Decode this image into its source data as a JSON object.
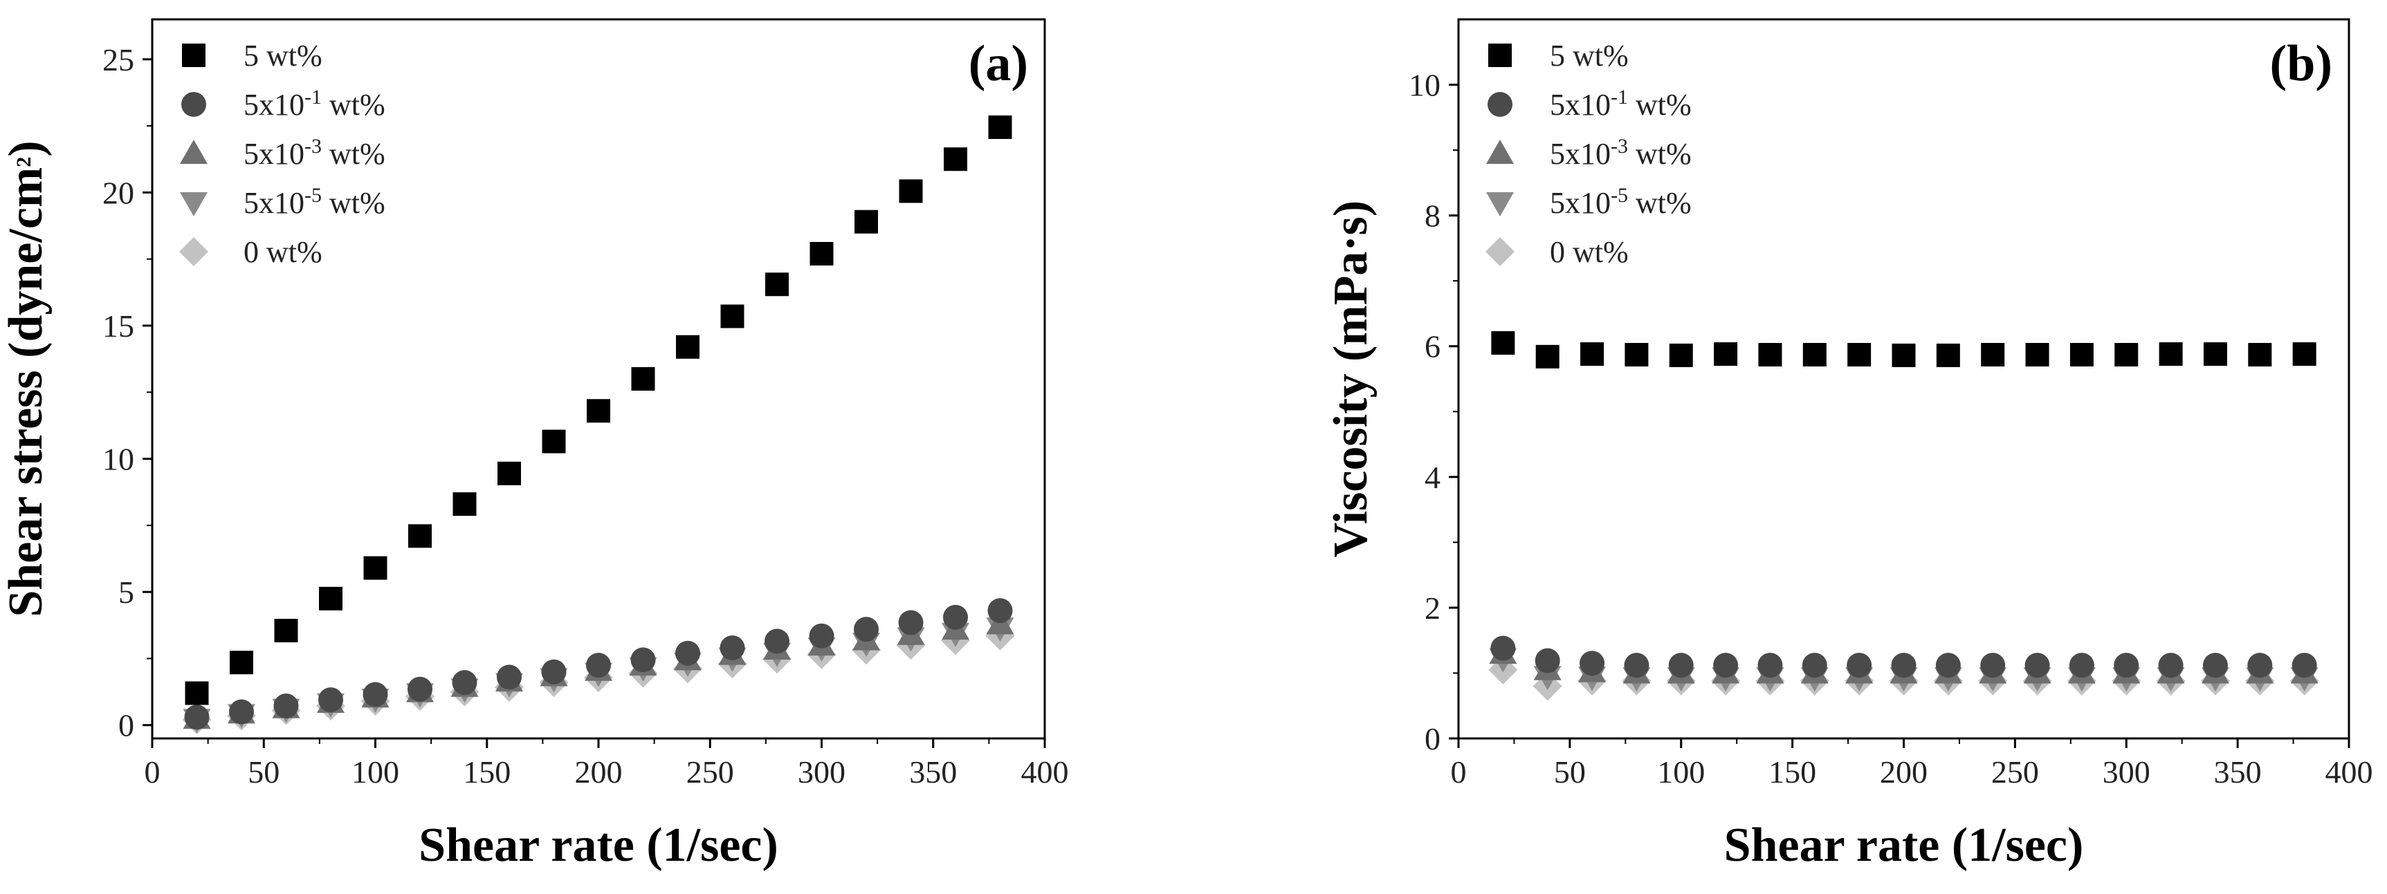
{
  "colors": {
    "s5": "#000000",
    "s5e1": "#4a4a4a",
    "s5e3": "#6f6f6f",
    "s5e5": "#8a8a8a",
    "s0": "#c2c2c2",
    "axis": "#000000"
  },
  "chart_data": [
    {
      "type": "scatter",
      "panel": "(a)",
      "xlabel": "Shear rate (1/sec)",
      "ylabel_main": "Shear stress (dyne/cm",
      "ylabel_sup": "2",
      "ylabel_end": ")",
      "xlim": [
        0,
        400
      ],
      "ylim": [
        -0.5,
        26.5
      ],
      "xticks": [
        0,
        50,
        100,
        150,
        200,
        250,
        300,
        350,
        400
      ],
      "xtick_labels": [
        "0",
        "50",
        "100",
        "150",
        "200",
        "250",
        "300",
        "350",
        "400"
      ],
      "yticks": [
        0,
        5,
        10,
        15,
        20,
        25
      ],
      "ytick_labels": [
        "0",
        "5",
        "10",
        "15",
        "20",
        "25"
      ],
      "legend_position": "top-left",
      "x": [
        20,
        40,
        60,
        80,
        100,
        120,
        140,
        160,
        180,
        200,
        220,
        240,
        260,
        280,
        300,
        320,
        340,
        360,
        380
      ],
      "series": [
        {
          "key": "s5",
          "marker": "square",
          "name_pre": "5 wt%",
          "name_sup": "",
          "name_post": "",
          "values": [
            1.2,
            2.35,
            3.55,
            4.75,
            5.9,
            7.1,
            8.3,
            9.45,
            10.65,
            11.8,
            13.0,
            14.2,
            15.35,
            16.55,
            17.7,
            18.9,
            20.05,
            21.25,
            22.45
          ]
        },
        {
          "key": "s5e1",
          "marker": "circle",
          "name_pre": "5x10",
          "name_sup": "-1",
          "name_post": " wt%",
          "values": [
            0.3,
            0.5,
            0.72,
            0.95,
            1.15,
            1.35,
            1.6,
            1.8,
            2.0,
            2.25,
            2.45,
            2.7,
            2.9,
            3.15,
            3.35,
            3.6,
            3.85,
            4.05,
            4.3
          ]
        },
        {
          "key": "s5e3",
          "marker": "triangle-up",
          "name_pre": "5x10",
          "name_sup": "-3",
          "name_post": " wt%",
          "values": [
            0.25,
            0.45,
            0.65,
            0.85,
            1.05,
            1.25,
            1.45,
            1.65,
            1.85,
            2.05,
            2.25,
            2.45,
            2.65,
            2.85,
            3.0,
            3.2,
            3.4,
            3.6,
            3.8
          ]
        },
        {
          "key": "s5e5",
          "marker": "triangle-down",
          "name_pre": "5x10",
          "name_sup": "-5",
          "name_post": " wt%",
          "values": [
            0.22,
            0.4,
            0.6,
            0.8,
            0.98,
            1.18,
            1.36,
            1.56,
            1.75,
            1.95,
            2.15,
            2.33,
            2.52,
            2.7,
            2.9,
            3.08,
            3.28,
            3.45,
            3.65
          ]
        },
        {
          "key": "s0",
          "marker": "diamond",
          "name_pre": "0 wt%",
          "name_sup": "",
          "name_post": "",
          "values": [
            0.2,
            0.35,
            0.55,
            0.72,
            0.9,
            1.08,
            1.25,
            1.42,
            1.6,
            1.78,
            1.95,
            2.12,
            2.3,
            2.48,
            2.65,
            2.82,
            3.0,
            3.18,
            3.35
          ]
        }
      ]
    },
    {
      "type": "scatter",
      "panel": "(b)",
      "xlabel": "Shear rate (1/sec)",
      "ylabel_main": "Viscosity (mPa·s)",
      "ylabel_sup": "",
      "ylabel_end": "",
      "xlim": [
        0,
        400
      ],
      "ylim": [
        0,
        11
      ],
      "xticks": [
        0,
        50,
        100,
        150,
        200,
        250,
        300,
        350,
        400
      ],
      "xtick_labels": [
        "0",
        "50",
        "100",
        "150",
        "200",
        "250",
        "300",
        "350",
        "400"
      ],
      "yticks": [
        0,
        2,
        4,
        6,
        8,
        10
      ],
      "ytick_labels": [
        "0",
        "2",
        "4",
        "6",
        "8",
        "10"
      ],
      "legend_position": "top-left",
      "x": [
        20,
        40,
        60,
        80,
        100,
        120,
        140,
        160,
        180,
        200,
        220,
        240,
        260,
        280,
        300,
        320,
        340,
        360,
        380
      ],
      "series": [
        {
          "key": "s5",
          "marker": "square",
          "name_pre": "5 wt%",
          "name_sup": "",
          "name_post": "",
          "values": [
            6.05,
            5.84,
            5.88,
            5.87,
            5.86,
            5.88,
            5.87,
            5.87,
            5.87,
            5.86,
            5.86,
            5.87,
            5.87,
            5.87,
            5.87,
            5.88,
            5.88,
            5.87,
            5.88
          ]
        },
        {
          "key": "s5e1",
          "marker": "circle",
          "name_pre": "5x10",
          "name_sup": "-1",
          "name_post": " wt%",
          "values": [
            1.38,
            1.19,
            1.15,
            1.12,
            1.12,
            1.12,
            1.12,
            1.12,
            1.12,
            1.12,
            1.12,
            1.12,
            1.12,
            1.12,
            1.12,
            1.12,
            1.12,
            1.12,
            1.12
          ]
        },
        {
          "key": "s5e3",
          "marker": "triangle-up",
          "name_pre": "5x10",
          "name_sup": "-3",
          "name_post": " wt%",
          "values": [
            1.3,
            1.05,
            1.02,
            1.0,
            1.0,
            1.0,
            1.0,
            1.0,
            1.0,
            1.0,
            1.0,
            1.0,
            1.0,
            1.0,
            1.0,
            1.0,
            1.0,
            1.0,
            1.0
          ]
        },
        {
          "key": "s5e5",
          "marker": "triangle-down",
          "name_pre": "5x10",
          "name_sup": "-5",
          "name_post": " wt%",
          "values": [
            1.22,
            0.95,
            0.94,
            0.93,
            0.93,
            0.93,
            0.93,
            0.93,
            0.93,
            0.93,
            0.93,
            0.93,
            0.93,
            0.93,
            0.93,
            0.93,
            0.93,
            0.93,
            0.93
          ]
        },
        {
          "key": "s0",
          "marker": "diamond",
          "name_pre": "0 wt%",
          "name_sup": "",
          "name_post": "",
          "values": [
            1.05,
            0.8,
            0.88,
            0.88,
            0.88,
            0.88,
            0.88,
            0.88,
            0.88,
            0.88,
            0.88,
            0.88,
            0.88,
            0.88,
            0.88,
            0.88,
            0.88,
            0.88,
            0.88
          ]
        }
      ]
    }
  ]
}
